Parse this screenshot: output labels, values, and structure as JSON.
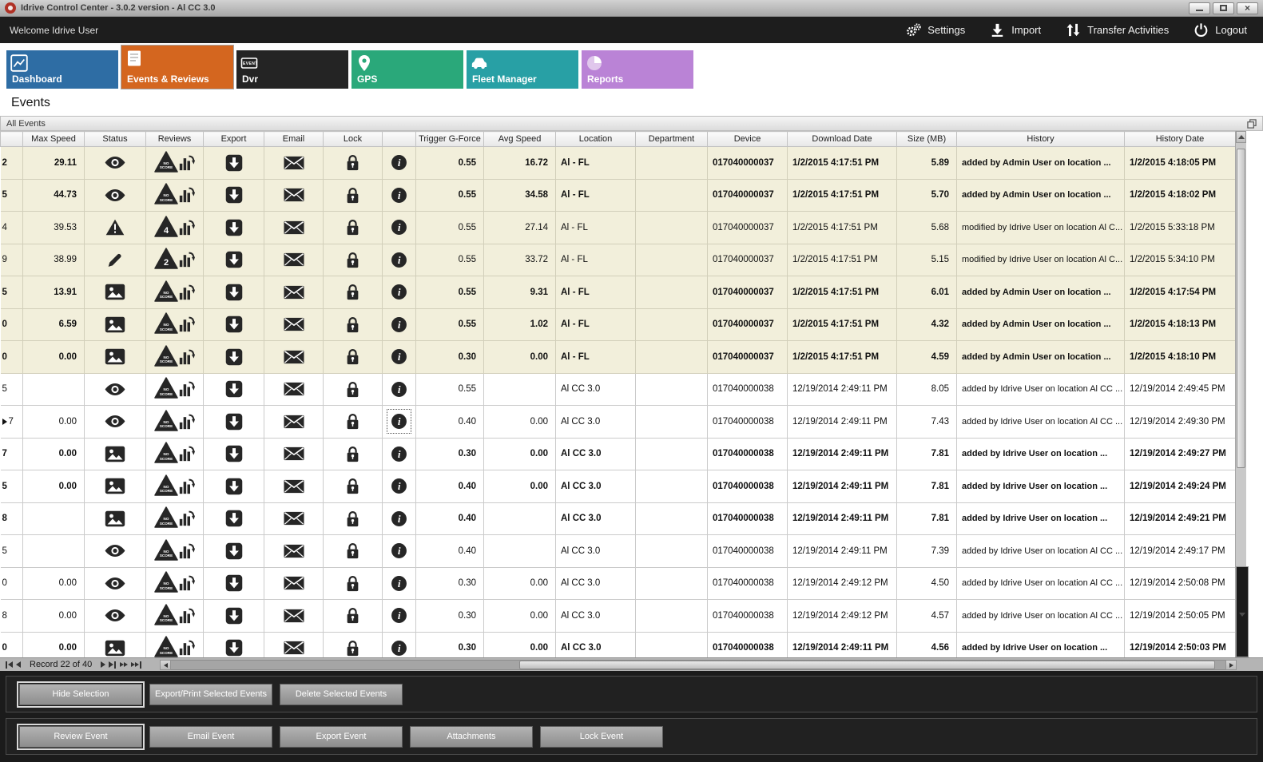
{
  "window": {
    "title": "Idrive Control Center - 3.0.2 version - Al CC 3.0"
  },
  "menubar": {
    "welcome": "Welcome Idrive User",
    "actions": [
      {
        "label": "Settings",
        "icon": "gears-icon"
      },
      {
        "label": "Import",
        "icon": "import-icon"
      },
      {
        "label": "Transfer Activities",
        "icon": "transfer-icon"
      },
      {
        "label": "Logout",
        "icon": "power-icon"
      }
    ]
  },
  "tabs": [
    {
      "label": "Dashboard",
      "color": "#2e6da4",
      "icon": "line-chart-icon",
      "selected": false
    },
    {
      "label": "Events & Reviews",
      "color": "#d4661f",
      "icon": "checklist-icon",
      "selected": true
    },
    {
      "label": "Dvr",
      "color": "#242424",
      "icon": "dvr-icon",
      "icon_label": "EVENT",
      "selected": false
    },
    {
      "label": "GPS",
      "color": "#2aa87a",
      "icon": "map-pin-icon",
      "selected": false
    },
    {
      "label": "Fleet Manager",
      "color": "#28a0a5",
      "icon": "car-icon",
      "selected": false
    },
    {
      "label": "Reports",
      "color": "#ba83d6",
      "icon": "pie-icon",
      "selected": false
    }
  ],
  "page_title": "Events",
  "panel_title": "All Events",
  "table": {
    "columns": [
      "Max Speed",
      "Status",
      "Reviews",
      "Export",
      "Email",
      "Lock",
      "",
      "Trigger G-Force",
      "Avg Speed",
      "Location",
      "Department",
      "Device",
      "Download Date",
      "Size (MB)",
      "History",
      "History Date"
    ],
    "rows": [
      {
        "edge": "2",
        "max_speed": "29.11",
        "status_icon": "eye-icon",
        "review": "NO SCORE",
        "trigger_g_force": "0.55",
        "avg_speed": "16.72",
        "location": "Al - FL",
        "department": "",
        "device": "017040000037",
        "download_date": "1/2/2015 4:17:51 PM",
        "size_mb": "5.89",
        "history": "added by Admin User on location ...",
        "history_date": "1/2/2015 4:18:05 PM",
        "bold": true,
        "shaded": true,
        "current": false,
        "focused_info": false
      },
      {
        "edge": "5",
        "max_speed": "44.73",
        "status_icon": "eye-icon",
        "review": "NO SCORE",
        "trigger_g_force": "0.55",
        "avg_speed": "34.58",
        "location": "Al - FL",
        "department": "",
        "device": "017040000037",
        "download_date": "1/2/2015 4:17:51 PM",
        "size_mb": "5.70",
        "history": "added by Admin User on location ...",
        "history_date": "1/2/2015 4:18:02 PM",
        "bold": true,
        "shaded": true,
        "current": false,
        "focused_info": false
      },
      {
        "edge": "4",
        "max_speed": "39.53",
        "status_icon": "warning-icon",
        "review": "4",
        "trigger_g_force": "0.55",
        "avg_speed": "27.14",
        "location": "Al - FL",
        "department": "",
        "device": "017040000037",
        "download_date": "1/2/2015 4:17:51 PM",
        "size_mb": "5.68",
        "history": "modified by Idrive User on location Al C...",
        "history_date": "1/2/2015 5:33:18 PM",
        "bold": false,
        "shaded": true,
        "current": false,
        "focused_info": false
      },
      {
        "edge": "9",
        "max_speed": "38.99",
        "status_icon": "pencil-icon",
        "review": "2",
        "trigger_g_force": "0.55",
        "avg_speed": "33.72",
        "location": "Al - FL",
        "department": "",
        "device": "017040000037",
        "download_date": "1/2/2015 4:17:51 PM",
        "size_mb": "5.15",
        "history": "modified by Idrive User on location Al C...",
        "history_date": "1/2/2015 5:34:10 PM",
        "bold": false,
        "shaded": true,
        "current": false,
        "focused_info": false
      },
      {
        "edge": "5",
        "max_speed": "13.91",
        "status_icon": "image-icon",
        "review": "NO SCORE",
        "trigger_g_force": "0.55",
        "avg_speed": "9.31",
        "location": "Al - FL",
        "department": "",
        "device": "017040000037",
        "download_date": "1/2/2015 4:17:51 PM",
        "size_mb": "6.01",
        "history": "added by Admin User on location ...",
        "history_date": "1/2/2015 4:17:54 PM",
        "bold": true,
        "shaded": true,
        "current": false,
        "focused_info": false
      },
      {
        "edge": "0",
        "max_speed": "6.59",
        "status_icon": "image-icon",
        "review": "NO SCORE",
        "trigger_g_force": "0.55",
        "avg_speed": "1.02",
        "location": "Al - FL",
        "department": "",
        "device": "017040000037",
        "download_date": "1/2/2015 4:17:51 PM",
        "size_mb": "4.32",
        "history": "added by Admin User on location ...",
        "history_date": "1/2/2015 4:18:13 PM",
        "bold": true,
        "shaded": true,
        "current": false,
        "focused_info": false
      },
      {
        "edge": "0",
        "max_speed": "0.00",
        "status_icon": "image-icon",
        "review": "NO SCORE",
        "trigger_g_force": "0.30",
        "avg_speed": "0.00",
        "location": "Al - FL",
        "department": "",
        "device": "017040000037",
        "download_date": "1/2/2015 4:17:51 PM",
        "size_mb": "4.59",
        "history": "added by Admin User on location ...",
        "history_date": "1/2/2015 4:18:10 PM",
        "bold": true,
        "shaded": true,
        "current": false,
        "focused_info": false
      },
      {
        "edge": "5",
        "max_speed": "",
        "status_icon": "eye-icon",
        "review": "NO SCORE",
        "trigger_g_force": "0.55",
        "avg_speed": "",
        "location": "Al CC 3.0",
        "department": "",
        "device": "017040000038",
        "download_date": "12/19/2014 2:49:11 PM",
        "size_mb": "8.05",
        "history": "added by Idrive User on location Al CC ...",
        "history_date": "12/19/2014 2:49:45 PM",
        "bold": false,
        "shaded": false,
        "current": false,
        "focused_info": false
      },
      {
        "edge": "7",
        "max_speed": "0.00",
        "status_icon": "eye-icon",
        "review": "NO SCORE",
        "trigger_g_force": "0.40",
        "avg_speed": "0.00",
        "location": "Al CC 3.0",
        "department": "",
        "device": "017040000038",
        "download_date": "12/19/2014 2:49:11 PM",
        "size_mb": "7.43",
        "history": "added by Idrive User on location Al CC ...",
        "history_date": "12/19/2014 2:49:30 PM",
        "bold": false,
        "shaded": false,
        "current": true,
        "focused_info": true
      },
      {
        "edge": "7",
        "max_speed": "0.00",
        "status_icon": "image-icon",
        "review": "NO SCORE",
        "trigger_g_force": "0.30",
        "avg_speed": "0.00",
        "location": "Al CC 3.0",
        "department": "",
        "device": "017040000038",
        "download_date": "12/19/2014 2:49:11 PM",
        "size_mb": "7.81",
        "history": "added by Idrive User on location ...",
        "history_date": "12/19/2014 2:49:27 PM",
        "bold": true,
        "shaded": false,
        "current": false,
        "focused_info": false
      },
      {
        "edge": "5",
        "max_speed": "0.00",
        "status_icon": "image-icon",
        "review": "NO SCORE",
        "trigger_g_force": "0.40",
        "avg_speed": "0.00",
        "location": "Al CC 3.0",
        "department": "",
        "device": "017040000038",
        "download_date": "12/19/2014 2:49:11 PM",
        "size_mb": "7.81",
        "history": "added by Idrive User on location ...",
        "history_date": "12/19/2014 2:49:24 PM",
        "bold": true,
        "shaded": false,
        "current": false,
        "focused_info": false
      },
      {
        "edge": "8",
        "max_speed": "",
        "status_icon": "image-icon",
        "review": "NO SCORE",
        "trigger_g_force": "0.40",
        "avg_speed": "",
        "location": "Al CC 3.0",
        "department": "",
        "device": "017040000038",
        "download_date": "12/19/2014 2:49:11 PM",
        "size_mb": "7.81",
        "history": "added by Idrive User on location ...",
        "history_date": "12/19/2014 2:49:21 PM",
        "bold": true,
        "shaded": false,
        "current": false,
        "focused_info": false
      },
      {
        "edge": "5",
        "max_speed": "",
        "status_icon": "eye-icon",
        "review": "NO SCORE",
        "trigger_g_force": "0.40",
        "avg_speed": "",
        "location": "Al CC 3.0",
        "department": "",
        "device": "017040000038",
        "download_date": "12/19/2014 2:49:11 PM",
        "size_mb": "7.39",
        "history": "added by Idrive User on location Al CC ...",
        "history_date": "12/19/2014 2:49:17 PM",
        "bold": false,
        "shaded": false,
        "current": false,
        "focused_info": false
      },
      {
        "edge": "0",
        "max_speed": "0.00",
        "status_icon": "eye-icon",
        "review": "NO SCORE",
        "trigger_g_force": "0.30",
        "avg_speed": "0.00",
        "location": "Al CC 3.0",
        "department": "",
        "device": "017040000038",
        "download_date": "12/19/2014 2:49:12 PM",
        "size_mb": "4.50",
        "history": "added by Idrive User on location Al CC ...",
        "history_date": "12/19/2014 2:50:08 PM",
        "bold": false,
        "shaded": false,
        "current": false,
        "focused_info": false
      },
      {
        "edge": "8",
        "max_speed": "0.00",
        "status_icon": "eye-icon",
        "review": "NO SCORE",
        "trigger_g_force": "0.30",
        "avg_speed": "0.00",
        "location": "Al CC 3.0",
        "department": "",
        "device": "017040000038",
        "download_date": "12/19/2014 2:49:12 PM",
        "size_mb": "4.57",
        "history": "added by Idrive User on location Al CC ...",
        "history_date": "12/19/2014 2:50:05 PM",
        "bold": false,
        "shaded": false,
        "current": false,
        "focused_info": false
      },
      {
        "edge": "0",
        "max_speed": "0.00",
        "status_icon": "image-icon",
        "review": "NO SCORE",
        "trigger_g_force": "0.30",
        "avg_speed": "0.00",
        "location": "Al CC 3.0",
        "department": "",
        "device": "017040000038",
        "download_date": "12/19/2014 2:49:11 PM",
        "size_mb": "4.56",
        "history": "added by Idrive User on location ...",
        "history_date": "12/19/2014 2:50:03 PM",
        "bold": true,
        "shaded": false,
        "current": false,
        "focused_info": false
      }
    ]
  },
  "pager": {
    "record_text": "Record 22 of 40"
  },
  "action_panels": [
    {
      "buttons": [
        {
          "label": "Hide Selection",
          "focused": true
        },
        {
          "label": "Export/Print Selected Events",
          "focused": false
        },
        {
          "label": "Delete Selected  Events",
          "focused": false
        }
      ]
    },
    {
      "buttons": [
        {
          "label": "Review Event",
          "focused": true
        },
        {
          "label": "Email Event",
          "focused": false
        },
        {
          "label": "Export Event",
          "focused": false
        },
        {
          "label": "Attachments",
          "focused": false
        },
        {
          "label": "Lock Event",
          "focused": false
        }
      ]
    }
  ]
}
